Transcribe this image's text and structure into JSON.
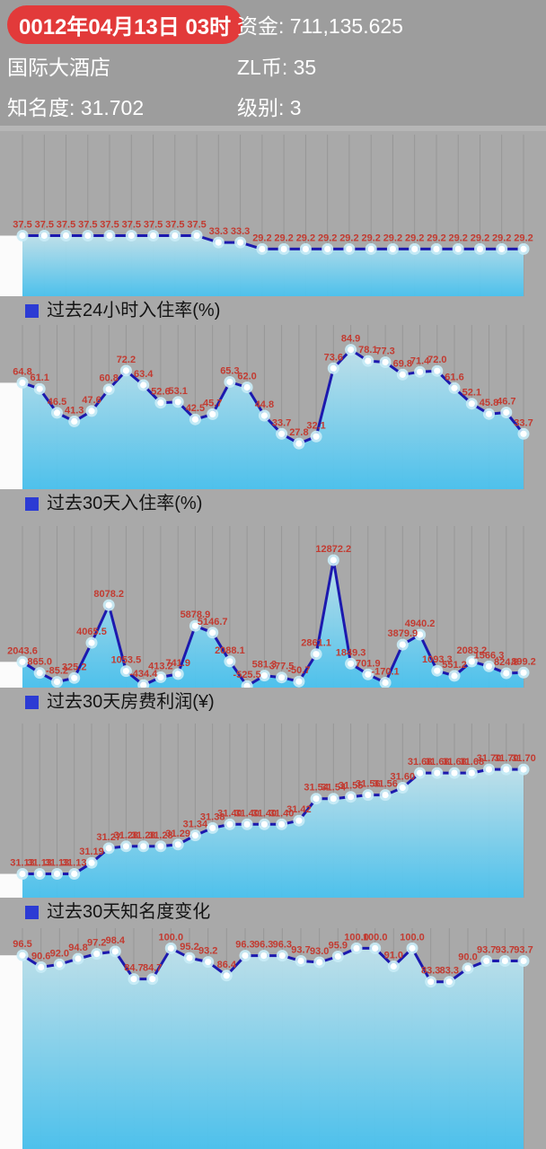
{
  "header": {
    "date": "0012年04月13日 03时",
    "hotel_name": "国际大酒店",
    "fame": {
      "label": "知名度:",
      "value": "31.702"
    },
    "funds": {
      "label": "资金:",
      "value": "711,135.625"
    },
    "zl": {
      "label": "ZL币:",
      "value": "35"
    },
    "level": {
      "label": "级别:",
      "value": "3"
    }
  },
  "colors": {
    "page_bg": "#a9a9a9",
    "header_bg": "#9d9d9d",
    "date_pill_red": "#e23a3a",
    "data_label_red": "#c23b31",
    "line_blue": "#1c19ae",
    "grid_gray": "#919191",
    "fill_top": "#bfe2ec",
    "fill_bottom": "#49c2ef",
    "legend_square_blue": "#2c3bd4",
    "marker_halo": "#c9ecf7",
    "marker_core": "#ffffff",
    "header_text": "#ffffff"
  },
  "chart_data": [
    {
      "type": "area",
      "legend": "过去24小时入住率(%)",
      "x_count": 24,
      "values": [
        37.5,
        37.5,
        37.5,
        37.5,
        37.5,
        37.5,
        37.5,
        37.5,
        37.5,
        33.3,
        33.3,
        29.2,
        29.2,
        29.2,
        29.2,
        29.2,
        29.2,
        29.2,
        29.2,
        29.2,
        29.2,
        29.2,
        29.2,
        29.2
      ],
      "ylim": [
        0,
        100
      ],
      "decimals": 1,
      "grid": true,
      "legend_position": "bottom-left"
    },
    {
      "type": "area",
      "legend": "过去30天入住率(%)",
      "x_count": 30,
      "values": [
        64.8,
        61.1,
        46.5,
        41.3,
        47.6,
        60.8,
        72.2,
        63.4,
        52.6,
        53.1,
        42.5,
        45.7,
        65.3,
        62.0,
        44.8,
        33.7,
        27.8,
        32.1,
        73.6,
        84.9,
        78.1,
        77.3,
        69.8,
        71.4,
        72.0,
        61.6,
        52.1,
        45.8,
        46.7,
        33.7
      ],
      "ylim": [
        0,
        100
      ],
      "decimals": 1,
      "grid": true,
      "legend_position": "bottom-left"
    },
    {
      "type": "area",
      "legend": "过去30天房费利润(¥)",
      "x_count": 30,
      "values": [
        2043.6,
        865.0,
        -85.2,
        325.2,
        4065.5,
        8078.2,
        1053.5,
        -434.4,
        413.2,
        741.9,
        5878.9,
        5146.7,
        2088.1,
        -525.5,
        581.3,
        377.5,
        -50.7,
        2861.1,
        12872.2,
        1849.3,
        701.9,
        -170.1,
        3879.9,
        4940.2,
        1093.3,
        551.2,
        2083.2,
        1566.3,
        824.8,
        899.2
      ],
      "ylim": [
        -700,
        16500
      ],
      "decimals": 1,
      "grid": true,
      "legend_position": "bottom-left"
    },
    {
      "type": "area",
      "legend": "过去30天知名度变化",
      "x_count": 30,
      "values": [
        31.13,
        31.13,
        31.13,
        31.13,
        31.19,
        31.27,
        31.28,
        31.28,
        31.28,
        31.29,
        31.34,
        31.38,
        31.4,
        31.4,
        31.4,
        31.4,
        31.42,
        31.54,
        31.54,
        31.55,
        31.56,
        31.56,
        31.6,
        31.68,
        31.68,
        31.68,
        31.68,
        31.7,
        31.7,
        31.7
      ],
      "ylim": [
        31.0,
        31.95
      ],
      "decimals": 2,
      "grid": true,
      "legend_position": "bottom-left"
    },
    {
      "type": "area",
      "legend": "",
      "x_count": 28,
      "values": [
        96.5,
        90.6,
        92.0,
        94.8,
        97.2,
        98.4,
        84.7,
        84.7,
        100.0,
        95.2,
        93.2,
        86.4,
        96.3,
        96.3,
        96.3,
        93.7,
        93.0,
        95.9,
        100.0,
        100.0,
        91.0,
        100.0,
        83.3,
        83.3,
        90.0,
        93.7,
        93.7,
        93.7
      ],
      "ylim": [
        0,
        110
      ],
      "decimals": 1,
      "grid": true,
      "legend_position": "none"
    }
  ]
}
